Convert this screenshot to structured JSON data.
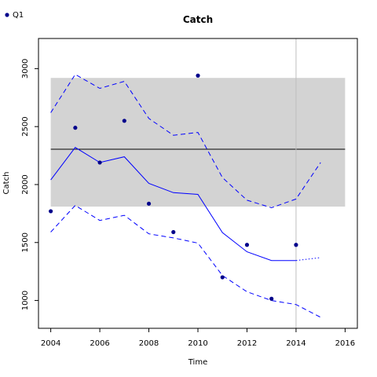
{
  "chart_data": {
    "type": "line",
    "title": "Catch",
    "xlabel": "Time",
    "ylabel": "Catch",
    "xlim": [
      2003.5,
      2016.5
    ],
    "ylim": [
      760,
      3260
    ],
    "xticks": [
      2004,
      2006,
      2008,
      2010,
      2012,
      2014,
      2016
    ],
    "yticks": [
      1000,
      1500,
      2000,
      2500,
      3000
    ],
    "legend": {
      "position": "top-left",
      "label": "Q1",
      "color": "#00008b"
    },
    "band": {
      "x": [
        2004,
        2016
      ],
      "y": [
        1810,
        2920
      ],
      "color": "#d3d3d3"
    },
    "hline": {
      "y": 2305,
      "color": "#000000"
    },
    "vline": {
      "x": 2014,
      "color": "#bebebe"
    },
    "points": {
      "name": "Q1",
      "color": "#00008b",
      "x": [
        2004,
        2005,
        2006,
        2007,
        2008,
        2009,
        2010,
        2011,
        2012,
        2013,
        2014
      ],
      "y": [
        1770,
        2490,
        2190,
        2550,
        1835,
        1590,
        2940,
        1200,
        1480,
        1015,
        1480
      ]
    },
    "series": [
      {
        "role": "fit",
        "style": "solid",
        "color": "#0000ff",
        "x": [
          2004,
          2005,
          2006,
          2007,
          2008,
          2009,
          2010,
          2011,
          2012,
          2013,
          2014
        ],
        "y": [
          2040,
          2320,
          2190,
          2240,
          2010,
          1930,
          1915,
          1585,
          1420,
          1345,
          1345
        ]
      },
      {
        "role": "upper",
        "style": "dashed",
        "color": "#0000ff",
        "x": [
          2004,
          2005,
          2006,
          2007,
          2008,
          2009,
          2010,
          2011,
          2012,
          2013,
          2014,
          2015
        ],
        "y": [
          2620,
          2950,
          2830,
          2890,
          2570,
          2425,
          2450,
          2060,
          1865,
          1800,
          1875,
          2190
        ]
      },
      {
        "role": "lower",
        "style": "dashed",
        "color": "#0000ff",
        "x": [
          2004,
          2005,
          2006,
          2007,
          2008,
          2009,
          2010,
          2011,
          2012,
          2013,
          2014,
          2015
        ],
        "y": [
          1590,
          1820,
          1690,
          1735,
          1575,
          1540,
          1495,
          1215,
          1075,
          1000,
          965,
          855
        ]
      },
      {
        "role": "forecast",
        "style": "dotted",
        "color": "#0000ff",
        "x": [
          2014,
          2015
        ],
        "y": [
          1345,
          1370
        ]
      }
    ]
  }
}
